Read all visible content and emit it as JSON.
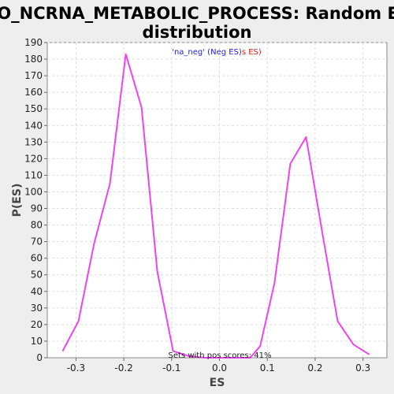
{
  "chart_data": {
    "type": "line",
    "title_line1": "GO_NCRNA_METABOLIC_PROCESS: Random ES",
    "title_line2": "distribution",
    "xlabel": "ES",
    "ylabel": "P(ES)",
    "xlim": [
      -0.36,
      0.35
    ],
    "ylim": [
      0,
      190
    ],
    "x_ticks": [
      -0.3,
      -0.2,
      -0.1,
      0.0,
      0.1,
      0.2,
      0.3
    ],
    "x_tick_labels": [
      "-0.3",
      "-0.2",
      "-0.1",
      "0.0",
      "0.1",
      "0.2",
      "0.3"
    ],
    "y_ticks": [
      0,
      10,
      20,
      30,
      40,
      50,
      60,
      70,
      80,
      90,
      100,
      110,
      120,
      130,
      140,
      150,
      160,
      170,
      180,
      190
    ],
    "grid": true,
    "legend": {
      "neg_label": "'na_neg' (Neg ES)",
      "pos_label": "s ES)",
      "neg_color": "#2222dd",
      "pos_color": "#dd2222",
      "placement": "top-center"
    },
    "annotation": "Sets with pos scores: 41%",
    "series": [
      {
        "color": "#ee44ee",
        "x": [
          -0.328,
          -0.295,
          -0.262,
          -0.229,
          -0.196,
          -0.163,
          -0.13,
          -0.097,
          -0.064,
          -0.031,
          0.0,
          0.031,
          0.064,
          0.085,
          0.115,
          0.148,
          0.181,
          0.214,
          0.247,
          0.28,
          0.313
        ],
        "y": [
          4,
          22,
          69,
          105,
          183,
          151,
          52,
          4,
          1,
          0,
          0,
          0,
          0,
          7,
          45,
          117,
          133,
          77,
          22,
          8,
          2
        ]
      }
    ]
  }
}
